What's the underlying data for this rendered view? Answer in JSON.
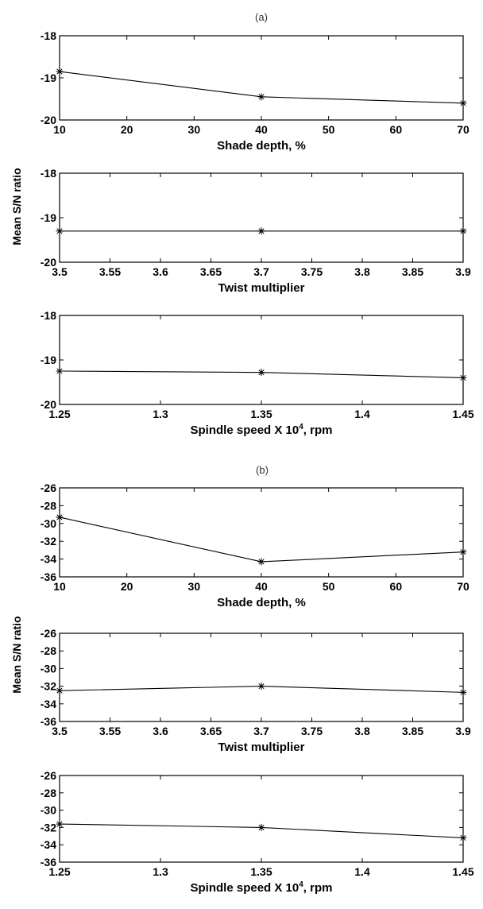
{
  "panels": [
    {
      "label": "(a)",
      "ylabel": "Mean S/N ratio"
    },
    {
      "label": "(b)",
      "ylabel": "Mean S/N ratio"
    }
  ],
  "chart_data": [
    {
      "type": "line",
      "panel": "(a)",
      "xlabel": "Shade depth, %",
      "ylabel": "",
      "xlim": [
        10,
        70
      ],
      "ylim": [
        -20,
        -18
      ],
      "xticks": [
        10,
        20,
        30,
        40,
        50,
        60,
        70
      ],
      "yticks": [
        -18,
        -19,
        -20
      ],
      "grid": false,
      "series": [
        {
          "x": [
            10,
            40,
            70
          ],
          "y": [
            -18.85,
            -19.45,
            -19.6
          ]
        }
      ]
    },
    {
      "type": "line",
      "panel": "(a)",
      "xlabel": "Twist multiplier",
      "ylabel": "",
      "xlim": [
        3.5,
        3.9
      ],
      "ylim": [
        -20,
        -18
      ],
      "xticks": [
        3.5,
        3.55,
        3.6,
        3.65,
        3.7,
        3.75,
        3.8,
        3.85,
        3.9
      ],
      "yticks": [
        -18,
        -19,
        -20
      ],
      "grid": false,
      "series": [
        {
          "x": [
            3.5,
            3.7,
            3.9
          ],
          "y": [
            -19.3,
            -19.3,
            -19.3
          ]
        }
      ]
    },
    {
      "type": "line",
      "panel": "(a)",
      "xlabel": "Spindle speed X 10",
      "xlabel_sup": "4",
      "xlabel_suffix": ", rpm",
      "ylabel": "",
      "xlim": [
        1.25,
        1.45
      ],
      "ylim": [
        -20,
        -18
      ],
      "xticks": [
        1.25,
        1.3,
        1.35,
        1.4,
        1.45
      ],
      "yticks": [
        -18,
        -19,
        -20
      ],
      "grid": false,
      "series": [
        {
          "x": [
            1.25,
            1.35,
            1.45
          ],
          "y": [
            -19.25,
            -19.28,
            -19.4
          ]
        }
      ]
    },
    {
      "type": "line",
      "panel": "(b)",
      "xlabel": "Shade depth, %",
      "ylabel": "",
      "xlim": [
        10,
        70
      ],
      "ylim": [
        -36,
        -26
      ],
      "xticks": [
        10,
        20,
        30,
        40,
        50,
        60,
        70
      ],
      "yticks": [
        -26,
        -28,
        -30,
        -32,
        -34,
        -36
      ],
      "grid": false,
      "series": [
        {
          "x": [
            10,
            40,
            70
          ],
          "y": [
            -29.3,
            -34.3,
            -33.2
          ]
        }
      ]
    },
    {
      "type": "line",
      "panel": "(b)",
      "xlabel": "Twist multiplier",
      "ylabel": "",
      "xlim": [
        3.5,
        3.9
      ],
      "ylim": [
        -36,
        -26
      ],
      "xticks": [
        3.5,
        3.55,
        3.6,
        3.65,
        3.7,
        3.75,
        3.8,
        3.85,
        3.9
      ],
      "yticks": [
        -26,
        -28,
        -30,
        -32,
        -34,
        -36
      ],
      "grid": false,
      "series": [
        {
          "x": [
            3.5,
            3.7,
            3.9
          ],
          "y": [
            -32.5,
            -32.0,
            -32.7
          ]
        }
      ]
    },
    {
      "type": "line",
      "panel": "(b)",
      "xlabel": "Spindle speed X 10",
      "xlabel_sup": "4",
      "xlabel_suffix": ", rpm",
      "ylabel": "",
      "xlim": [
        1.25,
        1.45
      ],
      "ylim": [
        -36,
        -26
      ],
      "xticks": [
        1.25,
        1.3,
        1.35,
        1.4,
        1.45
      ],
      "yticks": [
        -26,
        -28,
        -30,
        -32,
        -34,
        -36
      ],
      "grid": false,
      "series": [
        {
          "x": [
            1.25,
            1.35,
            1.45
          ],
          "y": [
            -31.6,
            -32.0,
            -33.2
          ]
        }
      ]
    }
  ]
}
